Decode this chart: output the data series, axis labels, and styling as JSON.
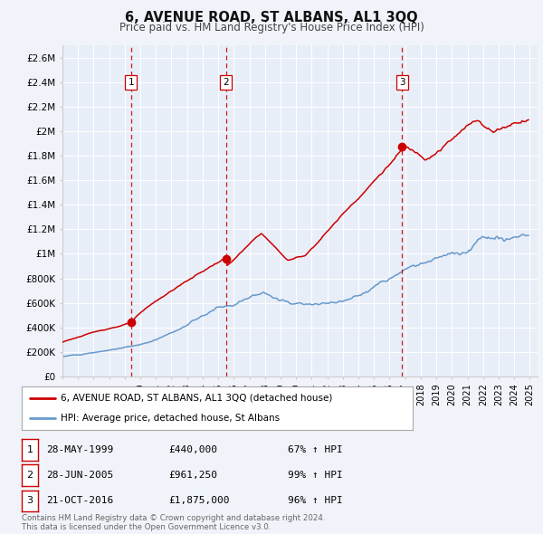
{
  "title": "6, AVENUE ROAD, ST ALBANS, AL1 3QQ",
  "subtitle": "Price paid vs. HM Land Registry's House Price Index (HPI)",
  "background_color": "#f0f4fa",
  "plot_background": "#e8eef8",
  "grid_color": "#ffffff",
  "red_line_color": "#cc0000",
  "blue_line_color": "#6699cc",
  "sale_marker_color": "#cc0000",
  "sale_dashed_color": "#cc0000",
  "ylim": [
    0,
    2700000
  ],
  "yticks": [
    0,
    200000,
    400000,
    600000,
    800000,
    1000000,
    1200000,
    1400000,
    1600000,
    1800000,
    2000000,
    2200000,
    2400000,
    2600000
  ],
  "ytick_labels": [
    "£0",
    "£200K",
    "£400K",
    "£600K",
    "£800K",
    "£1M",
    "£1.2M",
    "£1.4M",
    "£1.6M",
    "£1.8M",
    "£2M",
    "£2.2M",
    "£2.4M",
    "£2.6M"
  ],
  "xmin": 1995.0,
  "xmax": 2025.5,
  "sale_dates": [
    1999.41,
    2005.49,
    2016.81
  ],
  "sale_prices": [
    440000,
    961250,
    1875000
  ],
  "sale_labels": [
    "1",
    "2",
    "3"
  ],
  "legend_label_red": "6, AVENUE ROAD, ST ALBANS, AL1 3QQ (detached house)",
  "legend_label_blue": "HPI: Average price, detached house, St Albans",
  "table_rows": [
    [
      "1",
      "28-MAY-1999",
      "£440,000",
      "67% ↑ HPI"
    ],
    [
      "2",
      "28-JUN-2005",
      "£961,250",
      "99% ↑ HPI"
    ],
    [
      "3",
      "21-OCT-2016",
      "£1,875,000",
      "96% ↑ HPI"
    ]
  ],
  "footer": "Contains HM Land Registry data © Crown copyright and database right 2024.\nThis data is licensed under the Open Government Licence v3.0."
}
